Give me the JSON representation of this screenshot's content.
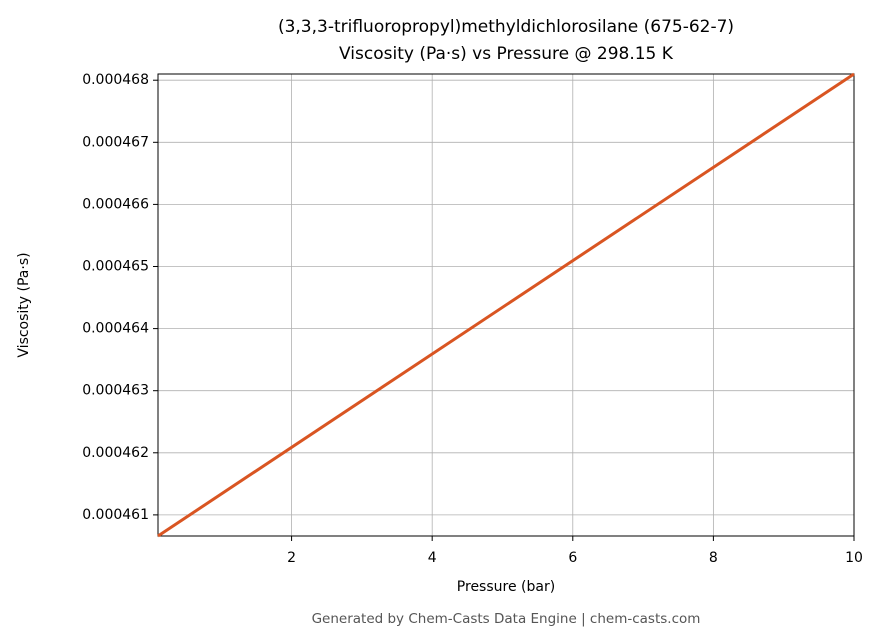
{
  "chart_data": {
    "type": "line",
    "title": "(3,3,3-trifluoropropyl)methyldichlorosilane (675-62-7)",
    "subtitle": "Viscosity (Pa·s) vs Pressure @ 298.15 K",
    "x_label": "Pressure (bar)",
    "y_label": "Viscosity (Pa·s)",
    "footer": "Generated by Chem-Casts Data Engine | chem-casts.com",
    "x": [
      0.1,
      10
    ],
    "series": [
      {
        "name": "Viscosity",
        "color": "#d95522",
        "values": [
          0.00046066,
          0.0004681
        ]
      }
    ],
    "xlim": [
      0.1,
      10
    ],
    "ylim": [
      0.00046066,
      0.0004681
    ],
    "xticks": [
      2,
      4,
      6,
      8,
      10
    ],
    "yticks": [
      0.000461,
      0.000462,
      0.000463,
      0.000464,
      0.000465,
      0.000466,
      0.000467,
      0.000468
    ],
    "grid": true
  }
}
